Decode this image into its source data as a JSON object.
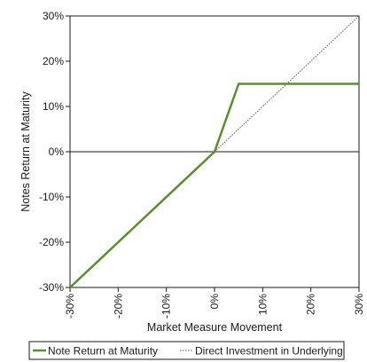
{
  "chart_data": {
    "type": "line",
    "title": "",
    "xlabel": "Market Measure Movement",
    "ylabel": "Notes Return at Maturity",
    "xlim": [
      -30,
      30
    ],
    "ylim": [
      -30,
      30
    ],
    "xticks": [
      "-30%",
      "-20%",
      "-10%",
      "0%",
      "10%",
      "20%",
      "30%"
    ],
    "yticks": [
      "30%",
      "20%",
      "10%",
      "0%",
      "-10%",
      "-20%",
      "-30%"
    ],
    "grid": false,
    "legend_position": "bottom",
    "series": [
      {
        "name": "Note Return at Maturity",
        "style": "solid",
        "color": "#5a8f2c",
        "x": [
          -30,
          0,
          5,
          30
        ],
        "y": [
          -30,
          0,
          15,
          15
        ]
      },
      {
        "name": "Direct Investment in Underlying",
        "style": "dotted",
        "color": "#555555",
        "x": [
          0,
          30
        ],
        "y": [
          0,
          30
        ]
      }
    ]
  }
}
